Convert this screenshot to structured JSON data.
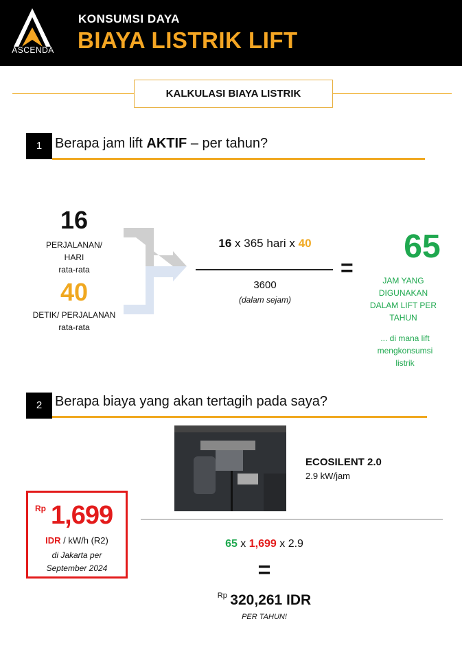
{
  "header": {
    "logo_text": "ASCENDA",
    "subtitle": "KONSUMSI DAYA",
    "title": "BIAYA LISTRIK LIFT"
  },
  "section_title": "KALKULASI BIAYA LISTRIK",
  "step1": {
    "number": "1",
    "question_pre": "Berapa jam lift ",
    "question_bold": "AKTIF",
    "question_post": " – per tahun?",
    "trips": "16",
    "trips_label1": "PERJALANAN/",
    "trips_label2": "HARI",
    "trips_label3": "rata-rata",
    "seconds": "40",
    "seconds_label1": "DETIK/ PERJALANAN",
    "seconds_label2": "rata-rata",
    "formula": {
      "a": "16",
      "mid": " x 365 hari x ",
      "b": "40",
      "denominator": "3600",
      "denominator_note": "(dalam sejam)",
      "equals": "="
    },
    "result": "65",
    "result_label": "JAM YANG DIGUNAKAN DALAM LIFT PER TAHUN",
    "result_note": "... di mana lift mengkonsumsi listrik"
  },
  "step2": {
    "number": "2",
    "question": "Berapa biaya yang akan tertagih pada saya?",
    "product_name": "ECOSILENT 2.0",
    "product_power": "2.9 kW/jam",
    "price_currency": "Rp",
    "price": "1,699",
    "price_unit_red": "IDR",
    "price_unit": " / kW/h (R2)",
    "price_note1": "di Jakarta per",
    "price_note2": "September 2024",
    "calc": {
      "a": "65",
      "x1": " x ",
      "b": "1,699",
      "x2": " x 2.9"
    },
    "equals": "=",
    "total_currency": "Rp",
    "total": "320,261 IDR",
    "total_note": "PER TAHUN!"
  },
  "colors": {
    "accent": "#f0a820",
    "green": "#1fa84f",
    "red": "#e31b1b"
  }
}
